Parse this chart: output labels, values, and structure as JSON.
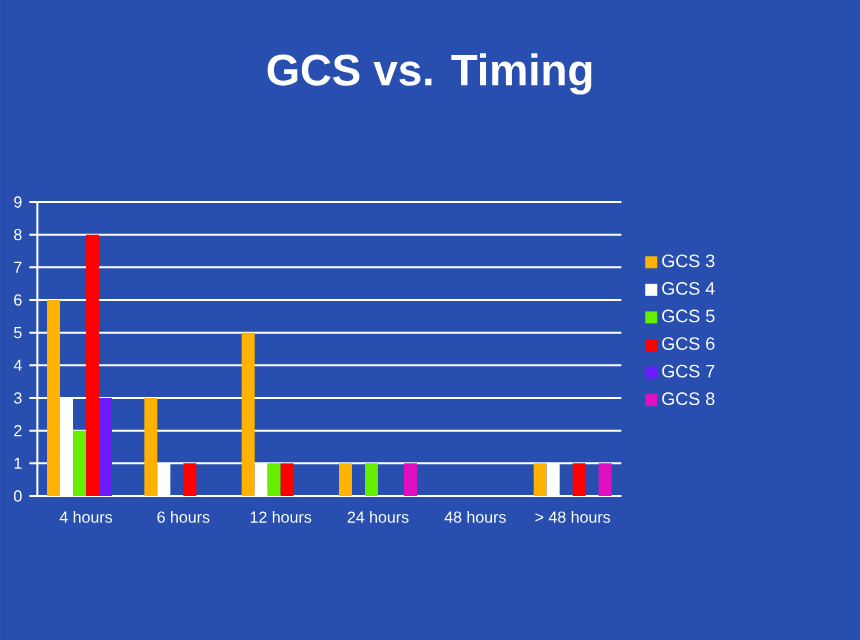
{
  "chart_data": {
    "type": "bar",
    "title": "GCS vs. Timing",
    "categories": [
      "4 hours",
      "6 hours",
      "12 hours",
      "24 hours",
      "48 hours",
      "> 48 hours"
    ],
    "series": [
      {
        "name": "GCS 3",
        "color": "#ffb300",
        "values": [
          6,
          3,
          5,
          1,
          0,
          1
        ]
      },
      {
        "name": "GCS 4",
        "color": "#ffffff",
        "values": [
          3,
          1,
          1,
          0,
          0,
          1
        ]
      },
      {
        "name": "GCS 5",
        "color": "#66ee00",
        "values": [
          2,
          0,
          1,
          1,
          0,
          0
        ]
      },
      {
        "name": "GCS 6",
        "color": "#ff0000",
        "values": [
          8,
          1,
          1,
          0,
          0,
          1
        ]
      },
      {
        "name": "GCS 7",
        "color": "#6a1bff",
        "values": [
          3,
          0,
          0,
          0,
          0,
          0
        ]
      },
      {
        "name": "GCS 8",
        "color": "#e010c0",
        "values": [
          0,
          0,
          0,
          1,
          0,
          1
        ]
      }
    ],
    "ylim": [
      0,
      9
    ],
    "yticks": [
      0,
      1,
      2,
      3,
      4,
      5,
      6,
      7,
      8,
      9
    ],
    "grid": "y",
    "legend": "right"
  }
}
